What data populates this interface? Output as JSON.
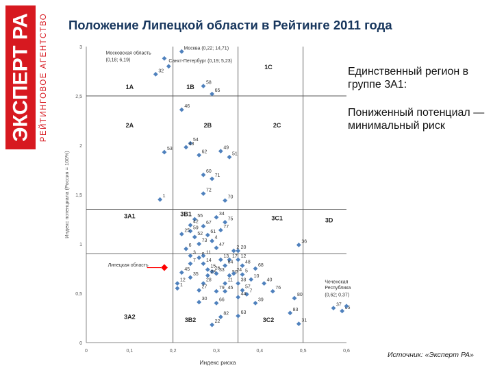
{
  "logo": {
    "top": "ЭКСПЕРТ РА",
    "bottom": "РЕЙТИНГОВОЕ АГЕНТСТВО",
    "color": "#d71920"
  },
  "title": "Положение Липецкой области в Рейтинге 2011 года",
  "side_text": {
    "line1": "Единственный регион в группе 3А1:",
    "line2": "Пониженный потенциал — минимальный риск"
  },
  "source": "Источник: «Эксперт РА»",
  "chart_data": {
    "type": "scatter",
    "xlabel": "Индекс риска",
    "ylabel": "Индекс потенциала (Россия = 100%)",
    "xlim": [
      0,
      0.6
    ],
    "ylim": [
      0,
      3
    ],
    "x_ticks": [
      "0",
      "0,1",
      "0,2",
      "0,3",
      "0,4",
      "0,5",
      "0,6"
    ],
    "y_ticks": [
      "0",
      "0,5",
      "1",
      "1,5",
      "2",
      "2,5",
      "3"
    ],
    "x_dividers": [
      0.2,
      0.35,
      0.5
    ],
    "y_dividers": [
      0.9,
      1.35,
      2.5
    ],
    "point_color": "#4f81bd",
    "highlight_color": "#ff0000",
    "zones": [
      {
        "label": "1C",
        "x": 0.42,
        "y": 2.77
      },
      {
        "label": "1A",
        "x": 0.1,
        "y": 2.57
      },
      {
        "label": "1B",
        "x": 0.24,
        "y": 2.57
      },
      {
        "label": "2A",
        "x": 0.1,
        "y": 2.18
      },
      {
        "label": "2B",
        "x": 0.28,
        "y": 2.18
      },
      {
        "label": "2C",
        "x": 0.44,
        "y": 2.18
      },
      {
        "label": "3A1",
        "x": 0.1,
        "y": 1.26
      },
      {
        "label": "3B1",
        "x": 0.23,
        "y": 1.28
      },
      {
        "label": "3C1",
        "x": 0.44,
        "y": 1.24
      },
      {
        "label": "3D",
        "x": 0.56,
        "y": 1.22
      },
      {
        "label": "3A2",
        "x": 0.1,
        "y": 0.24
      },
      {
        "label": "3B2",
        "x": 0.24,
        "y": 0.21
      },
      {
        "label": "3C2",
        "x": 0.42,
        "y": 0.21
      }
    ],
    "annotations": [
      {
        "text": "Москва (0,22; 14,71)",
        "x": 0.225,
        "y": 2.97
      },
      {
        "text": "Московская область",
        "x": 0.045,
        "y": 2.92
      },
      {
        "text": "(0,18; 6,19)",
        "x": 0.045,
        "y": 2.85
      },
      {
        "text": "Санкт-Петербург (0,19; 5,23)",
        "x": 0.19,
        "y": 2.84
      },
      {
        "text": "Липецкая область",
        "x": 0.05,
        "y": 0.77
      },
      {
        "text": "Чеченская",
        "x": 0.55,
        "y": 0.6
      },
      {
        "text": "Республика",
        "x": 0.55,
        "y": 0.54
      },
      {
        "text": "(0,62; 0,37)",
        "x": 0.55,
        "y": 0.47
      }
    ],
    "highlight": {
      "name": "Липецкая область",
      "x": 0.18,
      "y": 0.76
    },
    "series": [
      {
        "label": "",
        "x": 0.22,
        "y": 2.95
      },
      {
        "label": "",
        "x": 0.18,
        "y": 2.88
      },
      {
        "label": "",
        "x": 0.19,
        "y": 2.8
      },
      {
        "label": "32",
        "x": 0.16,
        "y": 2.72
      },
      {
        "label": "58",
        "x": 0.27,
        "y": 2.6
      },
      {
        "label": "65",
        "x": 0.29,
        "y": 2.52
      },
      {
        "label": "46",
        "x": 0.22,
        "y": 2.36
      },
      {
        "label": "54",
        "x": 0.24,
        "y": 2.02
      },
      {
        "label": "43",
        "x": 0.23,
        "y": 1.98
      },
      {
        "label": "53",
        "x": 0.18,
        "y": 1.93
      },
      {
        "label": "49",
        "x": 0.31,
        "y": 1.94
      },
      {
        "label": "51",
        "x": 0.33,
        "y": 1.88
      },
      {
        "label": "62",
        "x": 0.26,
        "y": 1.9
      },
      {
        "label": "60",
        "x": 0.27,
        "y": 1.7
      },
      {
        "label": "71",
        "x": 0.29,
        "y": 1.66
      },
      {
        "label": "72",
        "x": 0.27,
        "y": 1.51
      },
      {
        "label": "70",
        "x": 0.32,
        "y": 1.44
      },
      {
        "label": "1",
        "x": 0.17,
        "y": 1.45
      },
      {
        "label": "34",
        "x": 0.3,
        "y": 1.27
      },
      {
        "label": "55",
        "x": 0.25,
        "y": 1.25
      },
      {
        "label": "75",
        "x": 0.32,
        "y": 1.22
      },
      {
        "label": "67",
        "x": 0.27,
        "y": 1.18
      },
      {
        "label": "77",
        "x": 0.31,
        "y": 1.14
      },
      {
        "label": "42",
        "x": 0.24,
        "y": 1.19
      },
      {
        "label": "59",
        "x": 0.24,
        "y": 1.13
      },
      {
        "label": "25",
        "x": 0.22,
        "y": 1.1
      },
      {
        "label": "61",
        "x": 0.28,
        "y": 1.09
      },
      {
        "label": "52",
        "x": 0.25,
        "y": 1.07
      },
      {
        "label": "73",
        "x": 0.26,
        "y": 1.0
      },
      {
        "label": "4",
        "x": 0.29,
        "y": 1.03
      },
      {
        "label": "47",
        "x": 0.3,
        "y": 0.96
      },
      {
        "label": "6",
        "x": 0.23,
        "y": 0.95
      },
      {
        "label": "36",
        "x": 0.49,
        "y": 0.99
      },
      {
        "label": "20",
        "x": 0.35,
        "y": 0.93
      },
      {
        "label": "2",
        "x": 0.34,
        "y": 0.93
      },
      {
        "label": "3",
        "x": 0.24,
        "y": 0.88
      },
      {
        "label": "8",
        "x": 0.26,
        "y": 0.86
      },
      {
        "label": "11",
        "x": 0.27,
        "y": 0.88
      },
      {
        "label": "13",
        "x": 0.31,
        "y": 0.84
      },
      {
        "label": "17",
        "x": 0.33,
        "y": 0.84
      },
      {
        "label": "12",
        "x": 0.35,
        "y": 0.84
      },
      {
        "label": "7",
        "x": 0.24,
        "y": 0.8
      },
      {
        "label": "14",
        "x": 0.27,
        "y": 0.8
      },
      {
        "label": "64",
        "x": 0.32,
        "y": 0.78
      },
      {
        "label": "48",
        "x": 0.36,
        "y": 0.78
      },
      {
        "label": "68",
        "x": 0.39,
        "y": 0.75
      },
      {
        "label": "45",
        "x": 0.22,
        "y": 0.71
      },
      {
        "label": "15",
        "x": 0.28,
        "y": 0.74
      },
      {
        "label": "26",
        "x": 0.29,
        "y": 0.72
      },
      {
        "label": "23",
        "x": 0.28,
        "y": 0.68
      },
      {
        "label": "33",
        "x": 0.3,
        "y": 0.7
      },
      {
        "label": "50",
        "x": 0.33,
        "y": 0.68
      },
      {
        "label": "24",
        "x": 0.34,
        "y": 0.7
      },
      {
        "label": "5",
        "x": 0.36,
        "y": 0.69
      },
      {
        "label": "10",
        "x": 0.38,
        "y": 0.64
      },
      {
        "label": "38",
        "x": 0.35,
        "y": 0.6
      },
      {
        "label": "40",
        "x": 0.41,
        "y": 0.6
      },
      {
        "label": "28",
        "x": 0.27,
        "y": 0.6
      },
      {
        "label": "35",
        "x": 0.24,
        "y": 0.66
      },
      {
        "label": "12",
        "x": 0.21,
        "y": 0.6
      },
      {
        "label": "1",
        "x": 0.21,
        "y": 0.55
      },
      {
        "label": "11",
        "x": 0.32,
        "y": 0.6
      },
      {
        "label": "27",
        "x": 0.26,
        "y": 0.53
      },
      {
        "label": "79",
        "x": 0.3,
        "y": 0.52
      },
      {
        "label": "45",
        "x": 0.32,
        "y": 0.52
      },
      {
        "label": "57",
        "x": 0.36,
        "y": 0.53
      },
      {
        "label": "7",
        "x": 0.37,
        "y": 0.49
      },
      {
        "label": "76",
        "x": 0.43,
        "y": 0.52
      },
      {
        "label": "80",
        "x": 0.48,
        "y": 0.45
      },
      {
        "label": "44",
        "x": 0.35,
        "y": 0.46
      },
      {
        "label": "39",
        "x": 0.39,
        "y": 0.4
      },
      {
        "label": "30",
        "x": 0.26,
        "y": 0.41
      },
      {
        "label": "66",
        "x": 0.3,
        "y": 0.4
      },
      {
        "label": "83",
        "x": 0.47,
        "y": 0.3
      },
      {
        "label": "37",
        "x": 0.57,
        "y": 0.35
      },
      {
        "label": "65",
        "x": 0.59,
        "y": 0.32
      },
      {
        "label": "",
        "x": 0.6,
        "y": 0.37
      },
      {
        "label": "63",
        "x": 0.35,
        "y": 0.27
      },
      {
        "label": "82",
        "x": 0.31,
        "y": 0.26
      },
      {
        "label": "22",
        "x": 0.29,
        "y": 0.18
      },
      {
        "label": "31",
        "x": 0.49,
        "y": 0.19
      }
    ]
  }
}
